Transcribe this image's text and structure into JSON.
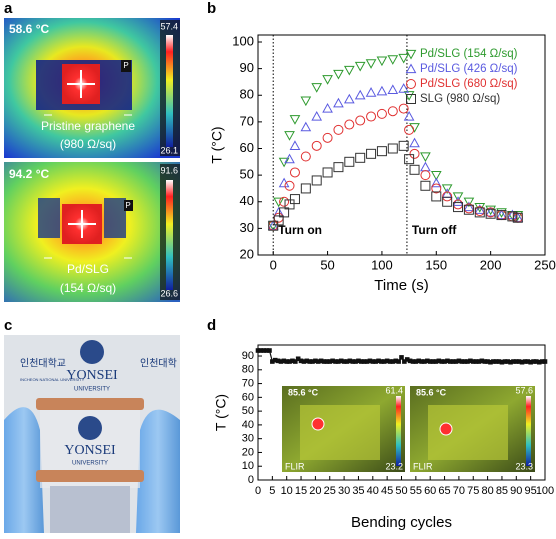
{
  "panels": {
    "a": {
      "label": "a",
      "top": {
        "temp": "58.6 °C",
        "scale_max": "57.4",
        "scale_min": "26.1",
        "marker": "P",
        "caption": [
          "Pristine graphene",
          "(980 Ω/sq)"
        ]
      },
      "bottom": {
        "temp": "94.2 °C",
        "scale_max": "91.6",
        "scale_min": "26.6",
        "marker": "P",
        "caption": [
          "Pd/SLG",
          "(154 Ω/sq)"
        ]
      }
    },
    "c": {
      "label": "c",
      "texts": [
        "YONSEI",
        "UNIVERSITY",
        "YONSEI",
        "UNIVERSITY",
        "인천대학교",
        "인천대학",
        "INCHEON NATIONAL UNIVERSITY"
      ]
    },
    "d_insets": [
      {
        "temp": "85.6 °C",
        "scale_max": "61.4",
        "scale_min": "23.2",
        "logo": "FLIR"
      },
      {
        "temp": "85.6 °C",
        "scale_max": "57.6",
        "scale_min": "23.3",
        "logo": "FLIR"
      }
    ]
  },
  "chart_data": [
    {
      "type": "line",
      "panel_label": "b",
      "xlabel": "Time (s)",
      "ylabel": "T (°C)",
      "x": [
        0,
        5,
        10,
        15,
        20,
        30,
        40,
        50,
        60,
        70,
        80,
        90,
        100,
        110,
        120,
        125,
        130,
        140,
        150,
        160,
        170,
        180,
        190,
        200,
        210,
        220,
        225
      ],
      "series": [
        {
          "name": "Pd/SLG (154 Ω/sq)",
          "color": "#2e9a2e",
          "marker": "triangle-down",
          "values": [
            31,
            40,
            55,
            65,
            71,
            78,
            83,
            86,
            88,
            89.5,
            91,
            92,
            93,
            93.5,
            94,
            80,
            68,
            57,
            50,
            45,
            42,
            40,
            38,
            37,
            36,
            35,
            35
          ]
        },
        {
          "name": "Pd/SLG (426 Ω/sq)",
          "color": "#5a5ae0",
          "marker": "triangle-up",
          "values": [
            31,
            36,
            47,
            56,
            61,
            68,
            72,
            75,
            77,
            78.5,
            80,
            81,
            81.5,
            82,
            82.5,
            72,
            62,
            53,
            47,
            43,
            40,
            38,
            37,
            36,
            35,
            35,
            34
          ]
        },
        {
          "name": "Pd/SLG (680 Ω/sq)",
          "color": "#e03030",
          "marker": "circle",
          "values": [
            31,
            34,
            40,
            46,
            51,
            57,
            61,
            64,
            67,
            69,
            70.5,
            72,
            73,
            74,
            75,
            67,
            58,
            50,
            45,
            42,
            39,
            37.5,
            36.5,
            36,
            35,
            34.5,
            34
          ]
        },
        {
          "name": "SLG (980 Ω/sq)",
          "color": "#333333",
          "marker": "square",
          "values": [
            31,
            33,
            36,
            39,
            41,
            45,
            48,
            51,
            53,
            55,
            56.5,
            58,
            59,
            60,
            61,
            56,
            52,
            46,
            42,
            40,
            38,
            37,
            36,
            35.5,
            35,
            34.5,
            34
          ]
        }
      ],
      "xlim": [
        -14,
        250
      ],
      "xticks": [
        0,
        50,
        100,
        150,
        200,
        250
      ],
      "ylim": [
        20,
        100
      ],
      "yticks": [
        20,
        30,
        40,
        50,
        60,
        70,
        80,
        90,
        100
      ],
      "legend": "upper right",
      "annotations": [
        {
          "text": "Turn on",
          "x": 0
        },
        {
          "text": "Turn off",
          "x": 123
        }
      ]
    },
    {
      "type": "line",
      "panel_label": "d",
      "xlabel": "Bending cycles",
      "ylabel": "T (°C)",
      "x": [
        0,
        1,
        2,
        3,
        4,
        5,
        6,
        7,
        8,
        9,
        10,
        11,
        12,
        13,
        14,
        15,
        16,
        17,
        18,
        19,
        20,
        21,
        22,
        23,
        24,
        25,
        26,
        27,
        28,
        29,
        30,
        31,
        32,
        33,
        34,
        35,
        36,
        37,
        38,
        39,
        40,
        41,
        42,
        43,
        44,
        45,
        46,
        47,
        48,
        49,
        50,
        51,
        52,
        53,
        54,
        55,
        56,
        57,
        58,
        59,
        60,
        61,
        62,
        63,
        64,
        65,
        66,
        67,
        68,
        69,
        70,
        71,
        72,
        73,
        74,
        75,
        76,
        77,
        78,
        79,
        80,
        81,
        82,
        83,
        84,
        85,
        86,
        87,
        88,
        89,
        90,
        91,
        92,
        93,
        94,
        95,
        96,
        97,
        98,
        99,
        100
      ],
      "series": [
        {
          "color": "#111111",
          "marker": "square",
          "line": true,
          "values": [
            94,
            94,
            94,
            94,
            94,
            86,
            87,
            86.5,
            86,
            86.5,
            86,
            86,
            86.5,
            86,
            88,
            86.5,
            86,
            86.5,
            86,
            86,
            86.5,
            86,
            86.5,
            86,
            86,
            86,
            86.5,
            86,
            86,
            86.5,
            86,
            86,
            86.5,
            86,
            86,
            86.5,
            86,
            86,
            86,
            86.5,
            86,
            86,
            86.5,
            86,
            86,
            86.5,
            86,
            86,
            86.5,
            86,
            89,
            86,
            87.5,
            86.5,
            86,
            86,
            86.5,
            86,
            86,
            86.5,
            86,
            86,
            86,
            86.5,
            86,
            86,
            86.5,
            86,
            86,
            86,
            86.5,
            86,
            86,
            86,
            86.5,
            86,
            86,
            86,
            86.5,
            86,
            86,
            85.5,
            86,
            86,
            86,
            85.5,
            86,
            86,
            85.5,
            86,
            86,
            86,
            85.5,
            86,
            86,
            85.5,
            86,
            86,
            85.5,
            86,
            86
          ]
        }
      ],
      "xlim": [
        0,
        100
      ],
      "xticks": [
        0,
        5,
        10,
        15,
        20,
        25,
        30,
        35,
        40,
        45,
        50,
        55,
        60,
        65,
        70,
        75,
        80,
        85,
        90,
        95,
        100
      ],
      "ylim": [
        0,
        98
      ],
      "yticks": [
        0,
        10,
        20,
        30,
        40,
        50,
        60,
        70,
        80,
        90
      ]
    }
  ]
}
